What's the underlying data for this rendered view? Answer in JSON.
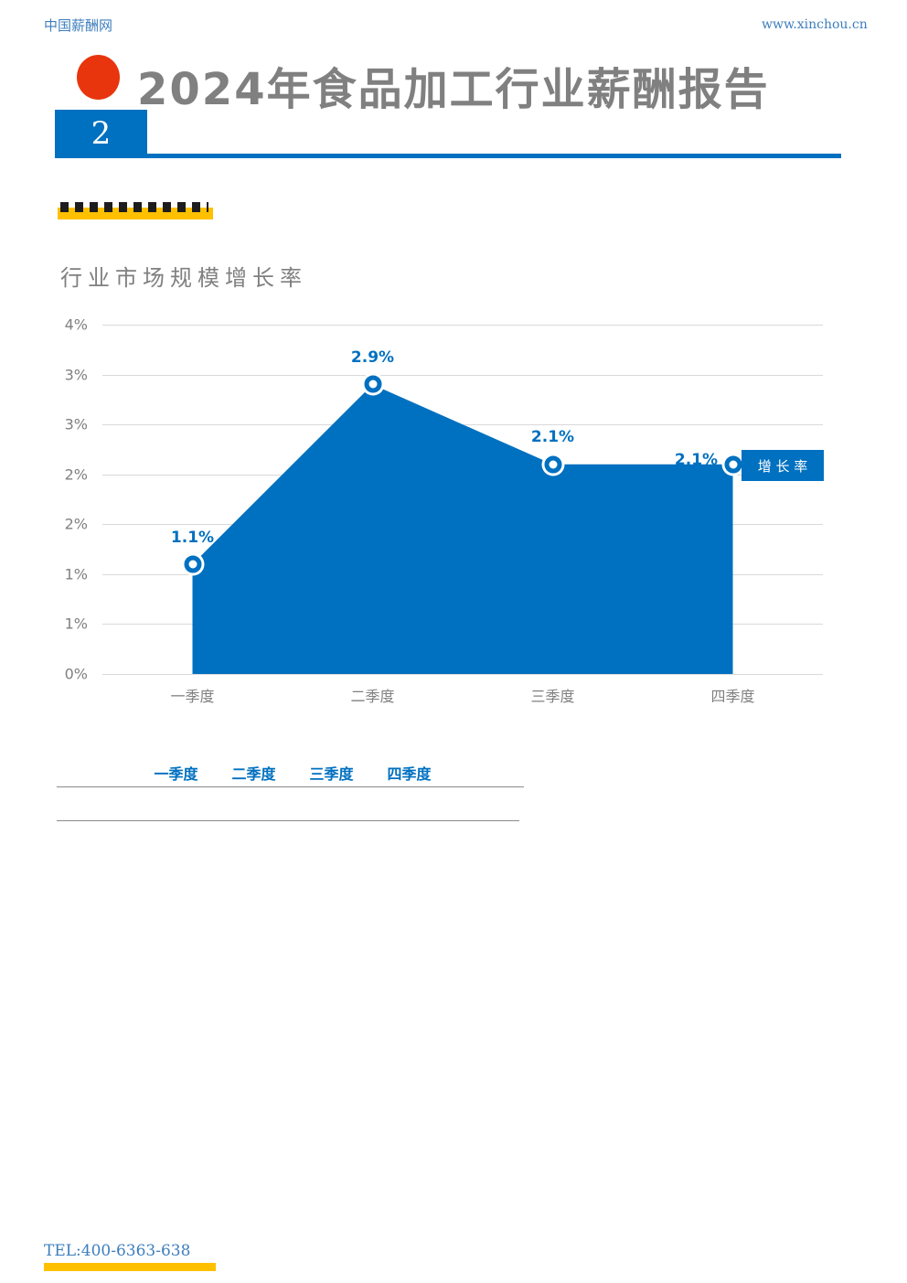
{
  "header": {
    "site_name": "中国薪酬网",
    "site_url": "www.xinchou.cn",
    "report_title": "2024年食品加工行业薪酬报告",
    "page_number": "2"
  },
  "chart_data": {
    "type": "area",
    "title": "行业市场规模增长率",
    "categories": [
      "一季度",
      "二季度",
      "三季度",
      "四季度"
    ],
    "series": [
      {
        "name": "增长率",
        "values": [
          1.1,
          2.9,
          2.1,
          2.1
        ]
      }
    ],
    "data_labels": [
      "1.1%",
      "2.9%",
      "2.1%",
      "2.1%"
    ],
    "y_tick_labels": [
      "4%",
      "3%",
      "3%",
      "2%",
      "2%",
      "1%",
      "1%",
      "0%"
    ],
    "ylim": [
      0,
      3.5
    ],
    "grid": true,
    "legend_position": "right",
    "legend_label": "增 长 率",
    "area_color": "#0070c0"
  },
  "table": {
    "headers": [
      "一季度",
      "二季度",
      "三季度",
      "四季度"
    ],
    "rows": [
      [
        "",
        "",
        "",
        ""
      ]
    ]
  },
  "footer": {
    "tel": "TEL:400-6363-638"
  },
  "colors": {
    "accent_blue": "#0070c0",
    "link_blue": "#3d7ebd",
    "title_gray": "#808080",
    "highlight_yellow": "#ffc000",
    "logo_red": "#e8350e",
    "gridline_gray": "#d9d9d9"
  }
}
